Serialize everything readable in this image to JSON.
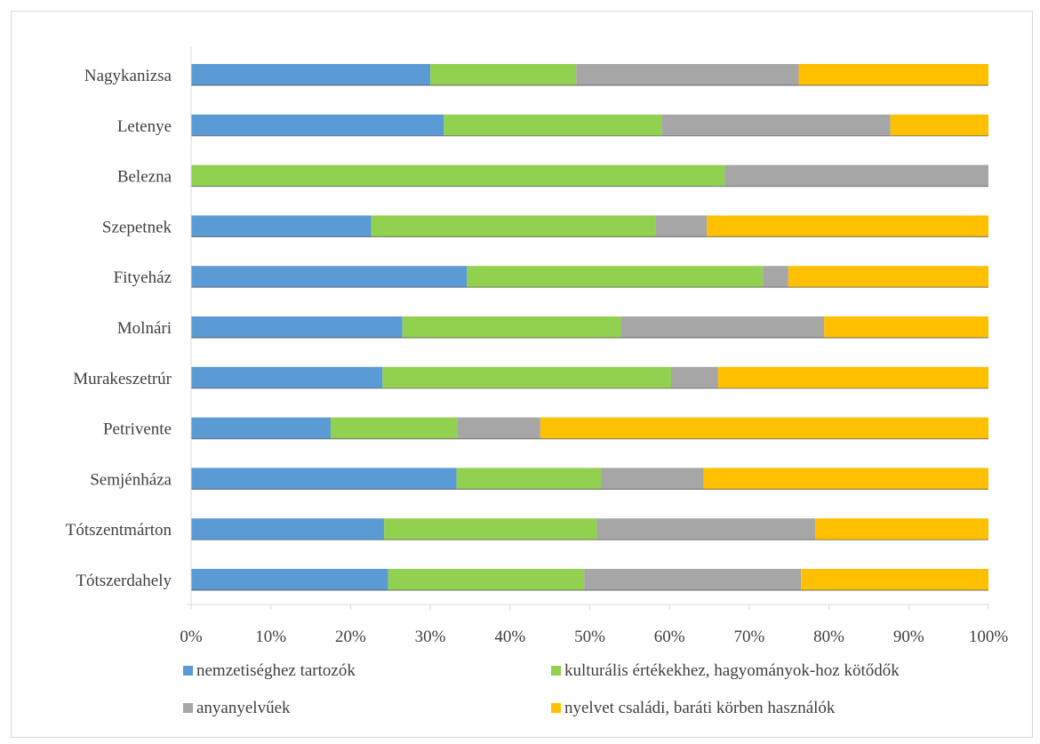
{
  "chart_data": {
    "type": "bar",
    "orientation": "horizontal",
    "stacked": "percent",
    "categories": [
      "Nagykanizsa",
      "Letenye",
      "Belezna",
      "Szepetnek",
      "Fityeház",
      "Molnári",
      "Murakeszetrúr",
      "Petrivente",
      "Semjénháza",
      "Tótszentmárton",
      "Tótszerdahely"
    ],
    "series": [
      {
        "name": "nemzetiséghez tartozók",
        "color": "#5b9bd5",
        "values": [
          30,
          31.7,
          0,
          22.6,
          34.6,
          26.5,
          24,
          17.5,
          33.3,
          24.2,
          24.7
        ]
      },
      {
        "name": "kulturális értékekhez, hagyományok-hoz kötődők",
        "color": "#92d050",
        "values": [
          18.3,
          27.3,
          66.9,
          35.7,
          37.1,
          27.4,
          36.2,
          15.9,
          18.1,
          26.7,
          24.6
        ]
      },
      {
        "name": "anyanyelvűek",
        "color": "#a6a6a6",
        "values": [
          27.9,
          28.7,
          33.1,
          6.4,
          3.2,
          25.5,
          5.9,
          10.4,
          12.9,
          27.4,
          27.2
        ]
      },
      {
        "name": "nyelvet családi, baráti körben használók",
        "color": "#ffc000",
        "values": [
          23.8,
          12.3,
          0,
          35.3,
          25.1,
          20.6,
          33.9,
          56.2,
          35.7,
          21.7,
          23.5
        ]
      }
    ],
    "xlim": [
      0,
      100
    ],
    "xticks": [
      "0%",
      "10%",
      "20%",
      "30%",
      "40%",
      "50%",
      "60%",
      "70%",
      "80%",
      "90%",
      "100%"
    ],
    "grid": false,
    "legend_position": "bottom"
  }
}
